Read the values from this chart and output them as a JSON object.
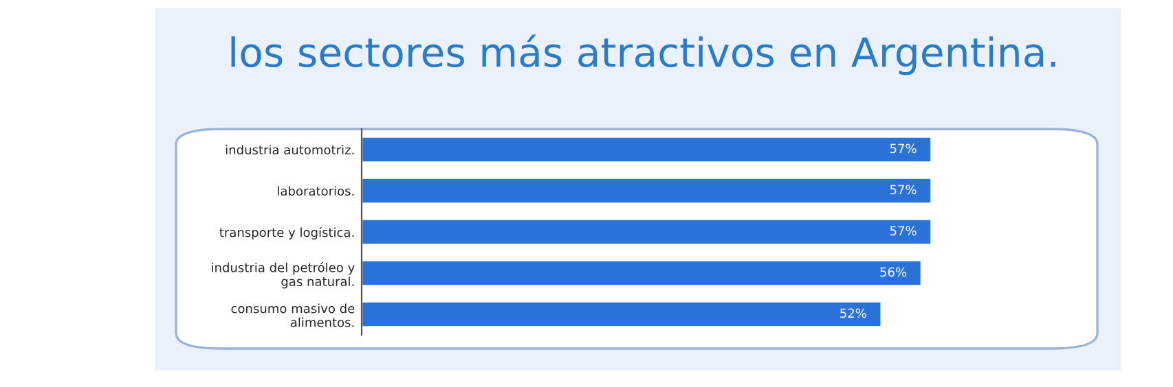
{
  "chart_data": {
    "type": "bar",
    "orientation": "horizontal",
    "title": "los sectores más atractivos en Argentina.",
    "categories": [
      "industria automotriz.",
      "laboratorios.",
      "transporte y logística.",
      "industria del petróleo y\ngas natural.",
      "consumo masivo de\nalimentos."
    ],
    "values": [
      57,
      57,
      57,
      56,
      52
    ],
    "value_labels": [
      "57%",
      "57%",
      "57%",
      "56%",
      "52%"
    ],
    "color": "#2a72d8",
    "grid": false,
    "legend": false,
    "tick_labels": "y"
  }
}
